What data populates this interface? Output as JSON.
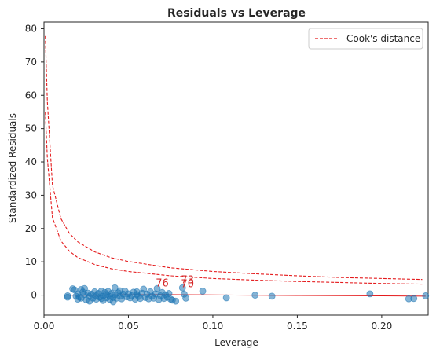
{
  "chart_data": {
    "type": "scatter",
    "title": "Residuals vs Leverage",
    "xlabel": "Leverage",
    "ylabel": "Standardized Residuals",
    "xlim": [
      0.0,
      0.2275
    ],
    "ylim": [
      -6,
      82
    ],
    "xticks": [
      "0.00",
      "0.05",
      "0.10",
      "0.15",
      "0.20"
    ],
    "yticks": [
      "0",
      "10",
      "20",
      "30",
      "40",
      "50",
      "60",
      "70",
      "80"
    ],
    "grid": false,
    "legend": {
      "position": "top-right",
      "entries": [
        {
          "label": "Cook's distance",
          "color": "#e41a1c",
          "style": "dashed"
        }
      ]
    },
    "points": [
      [
        0.014,
        -0.6
      ],
      [
        0.014,
        -0.2
      ],
      [
        0.017,
        1.9
      ],
      [
        0.018,
        1.6
      ],
      [
        0.019,
        -0.3
      ],
      [
        0.02,
        -1.2
      ],
      [
        0.02,
        0.4
      ],
      [
        0.021,
        -0.6
      ],
      [
        0.022,
        1.7
      ],
      [
        0.022,
        -0.9
      ],
      [
        0.023,
        0.9
      ],
      [
        0.024,
        2.0
      ],
      [
        0.024,
        0.2
      ],
      [
        0.025,
        -1.4
      ],
      [
        0.026,
        0.6
      ],
      [
        0.027,
        -0.4
      ],
      [
        0.027,
        -1.8
      ],
      [
        0.028,
        0.3
      ],
      [
        0.029,
        -0.9
      ],
      [
        0.03,
        1.0
      ],
      [
        0.031,
        -0.2
      ],
      [
        0.031,
        -1.2
      ],
      [
        0.032,
        0.5
      ],
      [
        0.033,
        -0.6
      ],
      [
        0.034,
        1.2
      ],
      [
        0.034,
        -1.0
      ],
      [
        0.035,
        -0.3
      ],
      [
        0.035,
        -1.6
      ],
      [
        0.036,
        0.8
      ],
      [
        0.037,
        -0.8
      ],
      [
        0.037,
        0.2
      ],
      [
        0.038,
        1.1
      ],
      [
        0.039,
        -1.3
      ],
      [
        0.039,
        -0.4
      ],
      [
        0.04,
        0.5
      ],
      [
        0.041,
        -2.0
      ],
      [
        0.041,
        -0.7
      ],
      [
        0.042,
        2.2
      ],
      [
        0.042,
        0.1
      ],
      [
        0.043,
        -0.9
      ],
      [
        0.044,
        0.7
      ],
      [
        0.045,
        -0.3
      ],
      [
        0.045,
        1.3
      ],
      [
        0.046,
        -1.1
      ],
      [
        0.047,
        0.3
      ],
      [
        0.048,
        1.2
      ],
      [
        0.049,
        -0.5
      ],
      [
        0.05,
        0.4
      ],
      [
        0.051,
        -0.8
      ],
      [
        0.052,
        -0.2
      ],
      [
        0.053,
        0.9
      ],
      [
        0.054,
        -1.2
      ],
      [
        0.055,
        0.2
      ],
      [
        0.055,
        1.0
      ],
      [
        0.056,
        -0.4
      ],
      [
        0.057,
        -1.0
      ],
      [
        0.058,
        0.6
      ],
      [
        0.059,
        1.8
      ],
      [
        0.06,
        -0.7
      ],
      [
        0.061,
        0.3
      ],
      [
        0.062,
        -1.1
      ],
      [
        0.063,
        1.0
      ],
      [
        0.064,
        -0.3
      ],
      [
        0.065,
        -0.9
      ],
      [
        0.066,
        0.4
      ],
      [
        0.067,
        2.0
      ],
      [
        0.068,
        -1.3
      ],
      [
        0.069,
        -0.2
      ],
      [
        0.07,
        0.8
      ],
      [
        0.071,
        -1.0
      ],
      [
        0.072,
        0.1
      ],
      [
        0.073,
        -0.6
      ],
      [
        0.074,
        0.5
      ],
      [
        0.075,
        -1.2
      ],
      [
        0.076,
        -1.5
      ],
      [
        0.078,
        -1.8
      ],
      [
        0.082,
        2.2
      ],
      [
        0.083,
        0.3
      ],
      [
        0.084,
        -0.9
      ],
      [
        0.094,
        1.2
      ],
      [
        0.108,
        -0.8
      ],
      [
        0.125,
        0.0
      ],
      [
        0.135,
        -0.3
      ],
      [
        0.193,
        0.4
      ],
      [
        0.216,
        -1.1
      ],
      [
        0.219,
        -1.0
      ],
      [
        0.226,
        -0.2
      ]
    ],
    "annotations": [
      {
        "text": "76",
        "x": 0.07,
        "y": 2.6
      },
      {
        "text": "73",
        "x": 0.085,
        "y": 3.6
      },
      {
        "text": "70",
        "x": 0.085,
        "y": 2.4
      }
    ],
    "cooks_distance_lines": [
      {
        "name": "Cook's distance",
        "x": [
          0.0008,
          0.002,
          0.005,
          0.01,
          0.015,
          0.02,
          0.03,
          0.04,
          0.05,
          0.075,
          0.1,
          0.125,
          0.15,
          0.175,
          0.2,
          0.224
        ],
        "y": [
          77.8,
          58.0,
          33.0,
          23.0,
          18.6,
          16.0,
          13.0,
          11.2,
          10.1,
          8.2,
          7.1,
          6.4,
          5.8,
          5.3,
          5.0,
          4.7
        ]
      },
      {
        "x": [
          0.0008,
          0.002,
          0.005,
          0.01,
          0.015,
          0.02,
          0.03,
          0.04,
          0.05,
          0.075,
          0.1,
          0.125,
          0.15,
          0.175,
          0.2,
          0.224
        ],
        "y": [
          55.0,
          41.0,
          23.3,
          16.3,
          13.2,
          11.3,
          9.2,
          7.9,
          7.1,
          5.8,
          5.0,
          4.5,
          4.1,
          3.8,
          3.5,
          3.3
        ]
      }
    ],
    "smoother": {
      "x": [
        0.014,
        0.03,
        0.05,
        0.07,
        0.09,
        0.12,
        0.15,
        0.19,
        0.226
      ],
      "y": [
        0.0,
        -0.05,
        0.1,
        0.15,
        0.1,
        0.0,
        -0.1,
        -0.2,
        -0.3
      ]
    },
    "colors": {
      "points": "#1f77b4",
      "cooks": "#e41a1c",
      "smoother": "#e41a1c",
      "annotation": "#d62728"
    }
  }
}
